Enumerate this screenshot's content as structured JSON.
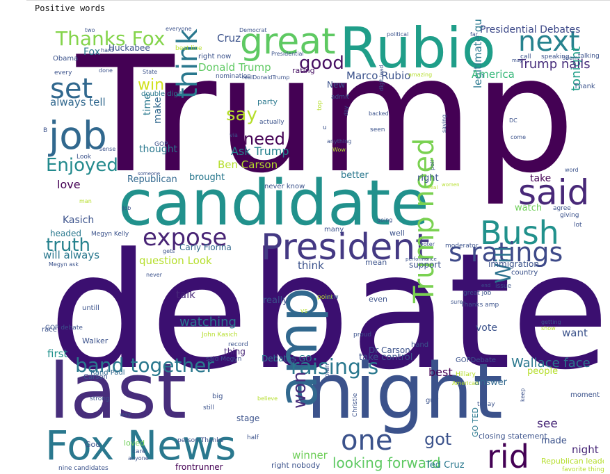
{
  "output_label": "Positive words",
  "words": [
    {
      "text": "Trump",
      "color": "#440154"
    },
    {
      "text": "debate",
      "color": "#3b0f70"
    },
    {
      "text": "candidate",
      "color": "#21918c"
    },
    {
      "text": "last",
      "color": "#472d7b"
    },
    {
      "text": "night",
      "color": "#3b528b"
    },
    {
      "text": "Rubio",
      "color": "#1f9e89"
    },
    {
      "text": "President",
      "color": "#443983"
    },
    {
      "text": "Fox News",
      "color": "#2a788e"
    },
    {
      "text": "great",
      "color": "#5ec962"
    },
    {
      "text": "amp",
      "color": "#31688e"
    },
    {
      "text": "Bush",
      "color": "#21918c"
    },
    {
      "text": "said",
      "color": "#482878"
    },
    {
      "text": "job",
      "color": "#31688e"
    },
    {
      "text": "next",
      "color": "#26828e"
    },
    {
      "text": "one",
      "color": "#3b528b"
    },
    {
      "text": "rid",
      "color": "#440154"
    },
    {
      "text": "Thanks Fox",
      "color": "#84d44b"
    },
    {
      "text": "set",
      "color": "#31688e"
    },
    {
      "text": "think Cruz",
      "color": "#2a788e"
    },
    {
      "text": "s ratings",
      "color": "#3e4a89"
    },
    {
      "text": "band together",
      "color": "#2a788e"
    },
    {
      "text": "Enjoyed",
      "color": "#238a8d"
    },
    {
      "text": "expose",
      "color": "#482475"
    },
    {
      "text": "Trump need",
      "color": "#7ad151"
    },
    {
      "text": "raising s",
      "color": "#2a788e"
    },
    {
      "text": "truth",
      "color": "#26828e"
    },
    {
      "text": "good",
      "color": "#471063"
    },
    {
      "text": "say",
      "color": "#b5de2b"
    },
    {
      "text": "need",
      "color": "#440154"
    },
    {
      "text": "Will",
      "color": "#2c728e"
    },
    {
      "text": "won",
      "color": "#472c7a"
    },
    {
      "text": "got",
      "color": "#3b528b"
    },
    {
      "text": "Wallace face",
      "color": "#2a788e"
    },
    {
      "text": "win",
      "color": "#d0e11c"
    },
    {
      "text": "tonight",
      "color": "#1f9e89"
    },
    {
      "text": "watching",
      "color": "#2a788e"
    },
    {
      "text": "looking forward",
      "color": "#5ec962"
    },
    {
      "text": "Ask Trump",
      "color": "#26828e"
    },
    {
      "text": "Trump nails",
      "color": "#472d7b"
    },
    {
      "text": "Presidential Debates",
      "color": "#3e4a89"
    },
    {
      "text": "Donald Trump",
      "color": "#5ec962"
    },
    {
      "text": "Marco Rubio",
      "color": "#3b528b"
    },
    {
      "text": "Ben Carson",
      "color": "#b5de2b"
    },
    {
      "text": "legitimate question",
      "color": "#2a788e"
    },
    {
      "text": "America",
      "color": "#35b779"
    },
    {
      "text": "always tell",
      "color": "#31688e"
    },
    {
      "text": "will always",
      "color": "#2a788e"
    },
    {
      "text": "question Look",
      "color": "#b5de2b"
    },
    {
      "text": "Carly Fiorina",
      "color": "#31688e"
    },
    {
      "text": "Kasich",
      "color": "#3b528b"
    },
    {
      "text": "love",
      "color": "#440154"
    },
    {
      "text": "winner",
      "color": "#6ece58"
    },
    {
      "text": "see",
      "color": "#482878"
    },
    {
      "text": "made",
      "color": "#3b528b"
    },
    {
      "text": "night",
      "color": "#482878"
    },
    {
      "text": "Ted Cruz",
      "color": "#2a788e"
    },
    {
      "text": "Fox",
      "color": "#2a788e"
    },
    {
      "text": "Cruz",
      "color": "#3b528b"
    },
    {
      "text": "Republican",
      "color": "#31688e"
    },
    {
      "text": "first",
      "color": "#21918c"
    },
    {
      "text": "thought",
      "color": "#2a788e"
    },
    {
      "text": "time",
      "color": "#2a788e"
    },
    {
      "text": "make",
      "color": "#31688e"
    },
    {
      "text": "take",
      "color": "#440154"
    },
    {
      "text": "watch",
      "color": "#6ece58"
    },
    {
      "text": "think",
      "color": "#3b528b"
    },
    {
      "text": "talk",
      "color": "#482878"
    },
    {
      "text": "want",
      "color": "#3b528b"
    },
    {
      "text": "vote",
      "color": "#3b528b"
    },
    {
      "text": "best",
      "color": "#440154"
    },
    {
      "text": "answer",
      "color": "#31688e"
    },
    {
      "text": "people",
      "color": "#b5de2b"
    },
    {
      "text": "immigration",
      "color": "#3b528b"
    },
    {
      "text": "support",
      "color": "#3b528b"
    },
    {
      "text": "Huckabee",
      "color": "#3b528b"
    },
    {
      "text": "double digit",
      "color": "#2a788e"
    },
    {
      "text": "rating",
      "color": "#471063"
    },
    {
      "text": "party",
      "color": "#2a788e"
    },
    {
      "text": "New",
      "color": "#3b528b"
    },
    {
      "text": "brought",
      "color": "#2a788e"
    },
    {
      "text": "better",
      "color": "#2a788e"
    },
    {
      "text": "right",
      "color": "#3b528b"
    },
    {
      "text": "take control",
      "color": "#3b528b"
    },
    {
      "text": "Dr Carson",
      "color": "#3b528b"
    },
    {
      "text": "Debates GO",
      "color": "#2a788e"
    },
    {
      "text": "thing",
      "color": "#482878"
    },
    {
      "text": "headed",
      "color": "#2a788e"
    },
    {
      "text": "Rand Paul",
      "color": "#31688e"
    },
    {
      "text": "Carson",
      "color": "#3b528b"
    },
    {
      "text": "Walker",
      "color": "#3b528b"
    },
    {
      "text": "GO TED",
      "color": "#2a788e"
    },
    {
      "text": "right nobody",
      "color": "#3b528b"
    },
    {
      "text": "stage",
      "color": "#3b528b"
    },
    {
      "text": "moment",
      "color": "#3b528b"
    },
    {
      "text": "closing statement",
      "color": "#3b528b"
    },
    {
      "text": "Republican leader",
      "color": "#b5de2b"
    },
    {
      "text": "frontrunner",
      "color": "#440154"
    },
    {
      "text": "nine candidates",
      "color": "#3b528b"
    },
    {
      "text": "loved",
      "color": "#6ece58"
    },
    {
      "text": "God",
      "color": "#3b528b"
    },
    {
      "text": "Obama",
      "color": "#3b528b"
    },
    {
      "text": "really",
      "color": "#3b528b"
    },
    {
      "text": "even",
      "color": "#3b528b"
    },
    {
      "text": "mean",
      "color": "#3b528b"
    },
    {
      "text": "well",
      "color": "#3b528b"
    },
    {
      "text": "many",
      "color": "#3b528b"
    },
    {
      "text": "never know",
      "color": "#3b528b"
    },
    {
      "text": "right now",
      "color": "#3b528b"
    },
    {
      "text": "Megyn Kelly",
      "color": "#3b528b"
    },
    {
      "text": "Megyn ask",
      "color": "#3b528b"
    },
    {
      "text": "Thank",
      "color": "#3b528b"
    },
    {
      "text": "agree",
      "color": "#3b528b"
    },
    {
      "text": "giving",
      "color": "#3b528b"
    },
    {
      "text": "lot",
      "color": "#3b528b"
    },
    {
      "text": "country",
      "color": "#3b528b"
    },
    {
      "text": "great job",
      "color": "#3b528b"
    },
    {
      "text": "Thanks amp",
      "color": "#3b528b"
    },
    {
      "text": "hand",
      "color": "#3b528b"
    },
    {
      "text": "GOPDebate",
      "color": "#3b528b"
    },
    {
      "text": "Hillary",
      "color": "#b5de2b"
    },
    {
      "text": "plan",
      "color": "#3b528b"
    },
    {
      "text": "Christie",
      "color": "#3b528b"
    },
    {
      "text": "guy",
      "color": "#3b528b"
    },
    {
      "text": "today",
      "color": "#3b528b"
    },
    {
      "text": "keep",
      "color": "#3b528b"
    },
    {
      "text": "big",
      "color": "#3b528b"
    },
    {
      "text": "still",
      "color": "#3b528b"
    },
    {
      "text": "half",
      "color": "#3b528b"
    },
    {
      "text": "strong",
      "color": "#3b528b"
    },
    {
      "text": "way",
      "color": "#3b528b"
    },
    {
      "text": "race",
      "color": "#3b528b"
    },
    {
      "text": "untill",
      "color": "#3b528b"
    },
    {
      "text": "GOP debate",
      "color": "#3b528b"
    },
    {
      "text": "John Kasich",
      "color": "#b5de2b"
    },
    {
      "text": "record",
      "color": "#3b528b"
    },
    {
      "text": "said Megyn",
      "color": "#3b528b"
    },
    {
      "text": "proud",
      "color": "#3b528b"
    },
    {
      "text": "person Thanks",
      "color": "#3b528b"
    },
    {
      "text": "care",
      "color": "#3b528b"
    },
    {
      "text": "anyone",
      "color": "#3b528b"
    },
    {
      "text": "favorite things",
      "color": "#b5de2b"
    },
    {
      "text": "admit",
      "color": "#3b528b"
    },
    {
      "text": "seen",
      "color": "#3b528b"
    },
    {
      "text": "anything",
      "color": "#3b528b"
    },
    {
      "text": "Wow",
      "color": "#b5de2b"
    },
    {
      "text": "u",
      "color": "#3b528b"
    },
    {
      "text": "actually",
      "color": "#3b528b"
    },
    {
      "text": "via",
      "color": "#3b528b"
    },
    {
      "text": "top",
      "color": "#b5de2b"
    },
    {
      "text": "day",
      "color": "#3b528b"
    },
    {
      "text": "digit lead",
      "color": "#3b528b"
    },
    {
      "text": "backed",
      "color": "#3b528b"
    },
    {
      "text": "poll",
      "color": "#3b528b"
    },
    {
      "text": "saying",
      "color": "#3b528b"
    },
    {
      "text": "come",
      "color": "#3b528b"
    },
    {
      "text": "DC",
      "color": "#3b528b"
    },
    {
      "text": "word",
      "color": "#3b528b"
    },
    {
      "text": "real",
      "color": "#b5de2b"
    },
    {
      "text": "women",
      "color": "#b5de2b"
    },
    {
      "text": "issue",
      "color": "#3b528b"
    },
    {
      "text": "end",
      "color": "#3b528b"
    },
    {
      "text": "sure",
      "color": "#3b528b"
    },
    {
      "text": "getting",
      "color": "#3b528b"
    },
    {
      "text": "show",
      "color": "#b5de2b"
    },
    {
      "text": "voter",
      "color": "#3b528b"
    },
    {
      "text": "moderator",
      "color": "#3b528b"
    },
    {
      "text": "performance",
      "color": "#3b528b"
    },
    {
      "text": "going",
      "color": "#3b528b"
    },
    {
      "text": "point",
      "color": "#b5de2b"
    },
    {
      "text": "now",
      "color": "#3b528b"
    },
    {
      "text": "GOP",
      "color": "#3b528b"
    },
    {
      "text": "Look",
      "color": "#3b528b"
    },
    {
      "text": "sense",
      "color": "#3b528b"
    },
    {
      "text": "someone",
      "color": "#3b528b"
    },
    {
      "text": "man",
      "color": "#b5de2b"
    },
    {
      "text": "Job",
      "color": "#3b528b"
    },
    {
      "text": "B",
      "color": "#3b528b"
    },
    {
      "text": "every",
      "color": "#3b528b"
    },
    {
      "text": "done",
      "color": "#3b528b"
    },
    {
      "text": "State",
      "color": "#3b528b"
    },
    {
      "text": "two",
      "color": "#3b528b"
    },
    {
      "text": "everyone",
      "color": "#3b528b"
    },
    {
      "text": "hard",
      "color": "#3b528b"
    },
    {
      "text": "best line",
      "color": "#b5de2b"
    },
    {
      "text": "Democrat",
      "color": "#3b528b"
    },
    {
      "text": "nomination",
      "color": "#3b528b"
    },
    {
      "text": "realDonaldTrump",
      "color": "#3b528b"
    },
    {
      "text": "Presidential",
      "color": "#3b528b"
    },
    {
      "text": "political",
      "color": "#3b528b"
    },
    {
      "text": "amazing",
      "color": "#b5de2b"
    },
    {
      "text": "far",
      "color": "#3b528b"
    },
    {
      "text": "call",
      "color": "#3b528b"
    },
    {
      "text": "speaking",
      "color": "#3b528b"
    },
    {
      "text": "seem",
      "color": "#3b528b"
    },
    {
      "text": "talking",
      "color": "#3b528b"
    },
    {
      "text": "may",
      "color": "#3b528b"
    },
    {
      "text": "gets",
      "color": "#3b528b"
    },
    {
      "text": "never",
      "color": "#3b528b"
    },
    {
      "text": "vs",
      "color": "#b5de2b"
    },
    {
      "text": "believe",
      "color": "#b5de2b"
    },
    {
      "text": "American",
      "color": "#b5de2b"
    }
  ]
}
